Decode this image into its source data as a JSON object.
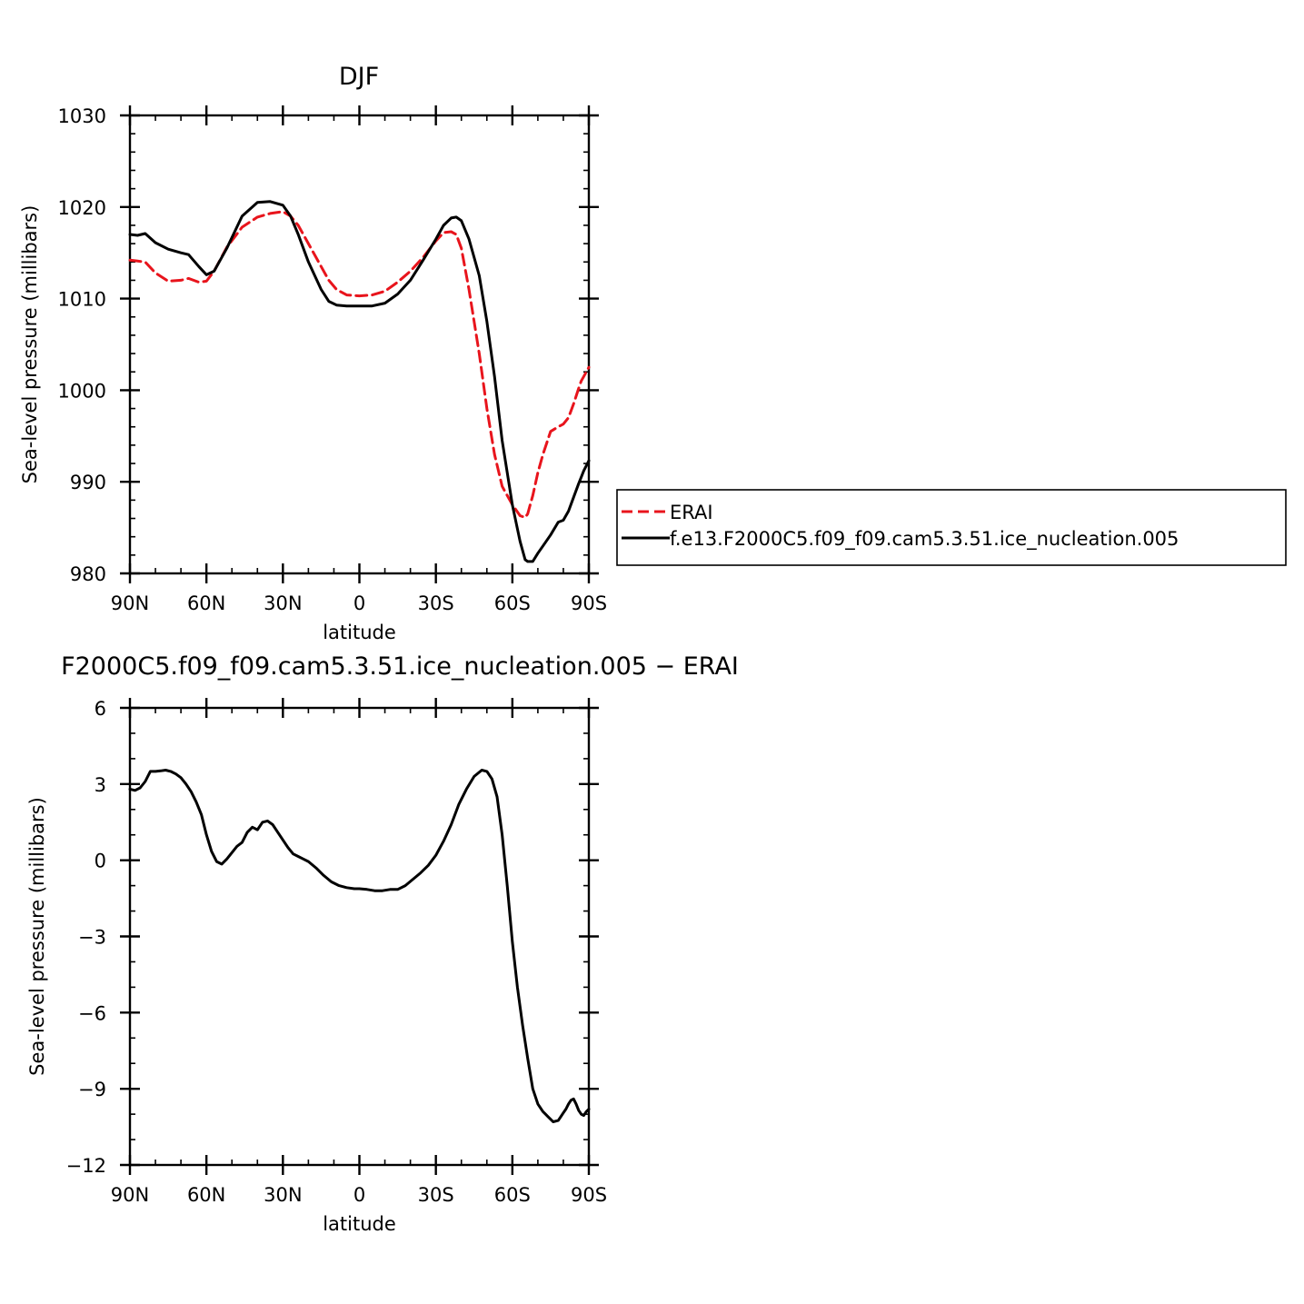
{
  "chart_data": [
    {
      "type": "line",
      "title": "DJF",
      "xlabel": "latitude",
      "ylabel": "Sea-level pressure (millibars)",
      "xlim": [
        90,
        -90
      ],
      "ylim": [
        980,
        1030
      ],
      "x_ticks": [
        {
          "value": 90,
          "label": "90N"
        },
        {
          "value": 60,
          "label": "60N"
        },
        {
          "value": 30,
          "label": "30N"
        },
        {
          "value": 0,
          "label": "0"
        },
        {
          "value": -30,
          "label": "30S"
        },
        {
          "value": -60,
          "label": "60S"
        },
        {
          "value": -90,
          "label": "90S"
        }
      ],
      "y_ticks": [
        {
          "value": 1030,
          "label": "1030"
        },
        {
          "value": 1020,
          "label": "1020"
        },
        {
          "value": 1010,
          "label": "1010"
        },
        {
          "value": 1000,
          "label": "1000"
        },
        {
          "value": 990,
          "label": "990"
        },
        {
          "value": 980,
          "label": "980"
        }
      ],
      "legend_position": "right",
      "series": [
        {
          "name": "ERAI",
          "color": "#e8141c",
          "dash": "dashed",
          "x": [
            90,
            87,
            84,
            80,
            75,
            70,
            67,
            63,
            60,
            57,
            52,
            46,
            40,
            35,
            30,
            27,
            24,
            20,
            15,
            12,
            9,
            5,
            0,
            -5,
            -10,
            -15,
            -20,
            -25,
            -30,
            -33,
            -36,
            -38,
            -40,
            -43,
            -47,
            -50,
            -53,
            -56,
            -60,
            -63,
            -65,
            -66,
            -68,
            -70,
            -72,
            -75,
            -78,
            -80,
            -82,
            -84,
            -86,
            -87,
            -88,
            -90
          ],
          "y": [
            1014.2,
            1014.1,
            1014.0,
            1012.8,
            1011.9,
            1012.0,
            1012.2,
            1011.8,
            1011.9,
            1013.0,
            1015.6,
            1017.8,
            1018.9,
            1019.3,
            1019.5,
            1019.0,
            1018.0,
            1016.0,
            1013.5,
            1012.0,
            1011.0,
            1010.4,
            1010.3,
            1010.4,
            1010.8,
            1011.8,
            1013.0,
            1014.5,
            1016.3,
            1017.2,
            1017.3,
            1017.0,
            1015.5,
            1011.0,
            1004.0,
            998.0,
            993.0,
            989.5,
            987.5,
            986.3,
            986.1,
            986.5,
            988.5,
            991.0,
            993.0,
            995.5,
            996.0,
            996.3,
            997.0,
            998.5,
            1000.2,
            1001.0,
            1001.5,
            1002.5
          ]
        },
        {
          "name": "f.e13.F2000C5.f09_f09.cam5.3.51.ice_nucleation.005",
          "color": "#000000",
          "dash": "solid",
          "x": [
            90,
            87,
            84,
            80,
            75,
            70,
            67,
            63,
            60,
            57,
            52,
            46,
            40,
            35,
            30,
            27,
            24,
            20,
            15,
            12,
            9,
            5,
            0,
            -5,
            -10,
            -15,
            -20,
            -25,
            -30,
            -33,
            -36,
            -38,
            -40,
            -43,
            -47,
            -50,
            -53,
            -56,
            -60,
            -63,
            -65,
            -66,
            -68,
            -70,
            -72,
            -75,
            -78,
            -80,
            -82,
            -84,
            -86,
            -87,
            -88,
            -90
          ],
          "y": [
            1017.0,
            1016.9,
            1017.1,
            1016.1,
            1015.4,
            1015.0,
            1014.8,
            1013.5,
            1012.6,
            1013.0,
            1015.5,
            1019.0,
            1020.5,
            1020.6,
            1020.2,
            1019.0,
            1017.0,
            1014.0,
            1011.0,
            1009.7,
            1009.3,
            1009.2,
            1009.2,
            1009.2,
            1009.5,
            1010.5,
            1012.0,
            1014.2,
            1016.5,
            1018.0,
            1018.8,
            1018.9,
            1018.5,
            1016.5,
            1012.5,
            1007.5,
            1001.5,
            994.5,
            987.5,
            983.5,
            981.5,
            981.3,
            981.3,
            982.2,
            983.0,
            984.2,
            985.6,
            985.8,
            986.8,
            988.3,
            989.8,
            990.5,
            991.2,
            992.3
          ]
        }
      ]
    },
    {
      "type": "line",
      "title": "F2000C5.f09_f09.cam5.3.51.ice_nucleation.005 − ERAI",
      "xlabel": "latitude",
      "ylabel": "Sea-level pressure (millibars)",
      "xlim": [
        90,
        -90
      ],
      "ylim": [
        -12,
        6
      ],
      "x_ticks": [
        {
          "value": 90,
          "label": "90N"
        },
        {
          "value": 60,
          "label": "60N"
        },
        {
          "value": 30,
          "label": "30N"
        },
        {
          "value": 0,
          "label": "0"
        },
        {
          "value": -30,
          "label": "30S"
        },
        {
          "value": -60,
          "label": "60S"
        },
        {
          "value": -90,
          "label": "90S"
        }
      ],
      "y_ticks": [
        {
          "value": 6,
          "label": "6"
        },
        {
          "value": 3,
          "label": "3"
        },
        {
          "value": 0,
          "label": "0"
        },
        {
          "value": -3,
          "label": "−3"
        },
        {
          "value": -6,
          "label": "−6"
        },
        {
          "value": -9,
          "label": "−9"
        },
        {
          "value": -12,
          "label": "−12"
        }
      ],
      "series": [
        {
          "color": "#000000",
          "dash": "solid",
          "x": [
            90,
            88,
            86,
            84,
            82,
            80,
            78,
            76,
            74,
            72,
            70,
            68,
            66,
            64,
            62,
            60,
            58,
            56,
            54,
            52,
            50,
            48,
            46,
            44,
            42,
            40,
            38,
            36,
            34,
            32,
            30,
            28,
            26,
            24,
            22,
            20,
            17,
            14,
            11,
            8,
            5,
            2,
            0,
            -3,
            -6,
            -9,
            -12,
            -15,
            -18,
            -21,
            -24,
            -27,
            -30,
            -33,
            -36,
            -39,
            -42,
            -45,
            -48,
            -50,
            -52,
            -54,
            -56,
            -58,
            -60,
            -62,
            -64,
            -66,
            -68,
            -70,
            -72,
            -73,
            -74,
            -75,
            -76,
            -78,
            -79,
            -80,
            -81,
            -82,
            -83,
            -84,
            -85,
            -86,
            -87,
            -88,
            -89,
            -90
          ],
          "y": [
            2.8,
            2.75,
            2.85,
            3.1,
            3.5,
            3.5,
            3.52,
            3.55,
            3.5,
            3.4,
            3.25,
            3.0,
            2.7,
            2.3,
            1.8,
            1.0,
            0.35,
            -0.05,
            -0.15,
            0.05,
            0.3,
            0.55,
            0.7,
            1.1,
            1.3,
            1.2,
            1.5,
            1.55,
            1.4,
            1.1,
            0.8,
            0.5,
            0.25,
            0.15,
            0.05,
            -0.05,
            -0.3,
            -0.6,
            -0.85,
            -1.0,
            -1.08,
            -1.12,
            -1.12,
            -1.15,
            -1.2,
            -1.2,
            -1.15,
            -1.15,
            -1.0,
            -0.75,
            -0.5,
            -0.2,
            0.2,
            0.75,
            1.4,
            2.2,
            2.8,
            3.3,
            3.55,
            3.5,
            3.2,
            2.5,
            1.0,
            -1.0,
            -3.2,
            -5.0,
            -6.5,
            -7.8,
            -9.0,
            -9.6,
            -9.9,
            -10.0,
            -10.1,
            -10.2,
            -10.3,
            -10.25,
            -10.1,
            -9.95,
            -9.8,
            -9.6,
            -9.45,
            -9.4,
            -9.6,
            -9.85,
            -10.0,
            -10.05,
            -9.9,
            -9.8
          ]
        }
      ]
    }
  ]
}
